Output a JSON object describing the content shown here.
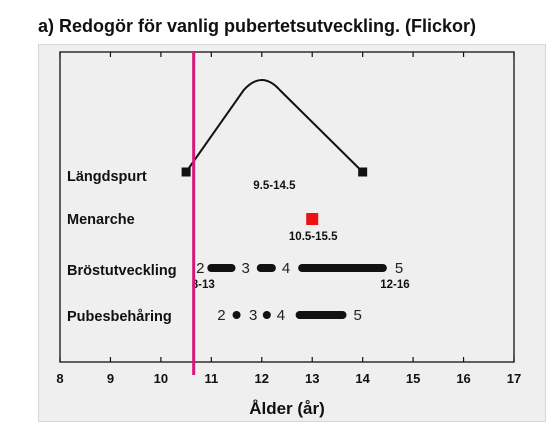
{
  "chart_data": {
    "type": "range-timeline",
    "title": "a) Redogör för vanlig pubertetsutveckling. (Flickor)",
    "xlabel": "Ålder (år)",
    "ylabel": "",
    "xlim": [
      8,
      17
    ],
    "xticks": [
      8,
      9,
      10,
      11,
      12,
      13,
      14,
      15,
      16,
      17
    ],
    "reference_line": {
      "x": 10.65,
      "color": "#d6187a"
    },
    "rows": [
      {
        "label": "Längdspurt",
        "curve": {
          "start": 10.5,
          "peak": 12.0,
          "end": 14.0
        },
        "endpoints": [
          10.5,
          14.0
        ],
        "range_label": "9.5-14.5"
      },
      {
        "label": "Menarche",
        "marker": 13.0,
        "marker_color": "#ee1111",
        "range_label": "10.5-15.5"
      },
      {
        "label": "Bröstutveckling",
        "stages": [
          {
            "label": "2",
            "x": 10.78
          },
          {
            "label": "3",
            "x": 11.68
          },
          {
            "label": "4",
            "x": 12.48
          },
          {
            "label": "5",
            "x": 14.72
          }
        ],
        "segments": [
          [
            11.0,
            11.4
          ],
          [
            11.98,
            12.2
          ],
          [
            12.8,
            14.4
          ]
        ],
        "range_start_label": "8-13",
        "range_end_label": "12-16"
      },
      {
        "label": "Pubesbehåring",
        "stages": [
          {
            "label": "2",
            "x": 11.2
          },
          {
            "label": "3",
            "x": 11.83
          },
          {
            "label": "4",
            "x": 12.38
          },
          {
            "label": "5",
            "x": 13.9
          }
        ],
        "dots": [
          11.5,
          12.1
        ],
        "segments": [
          [
            12.75,
            13.6
          ]
        ]
      }
    ]
  }
}
